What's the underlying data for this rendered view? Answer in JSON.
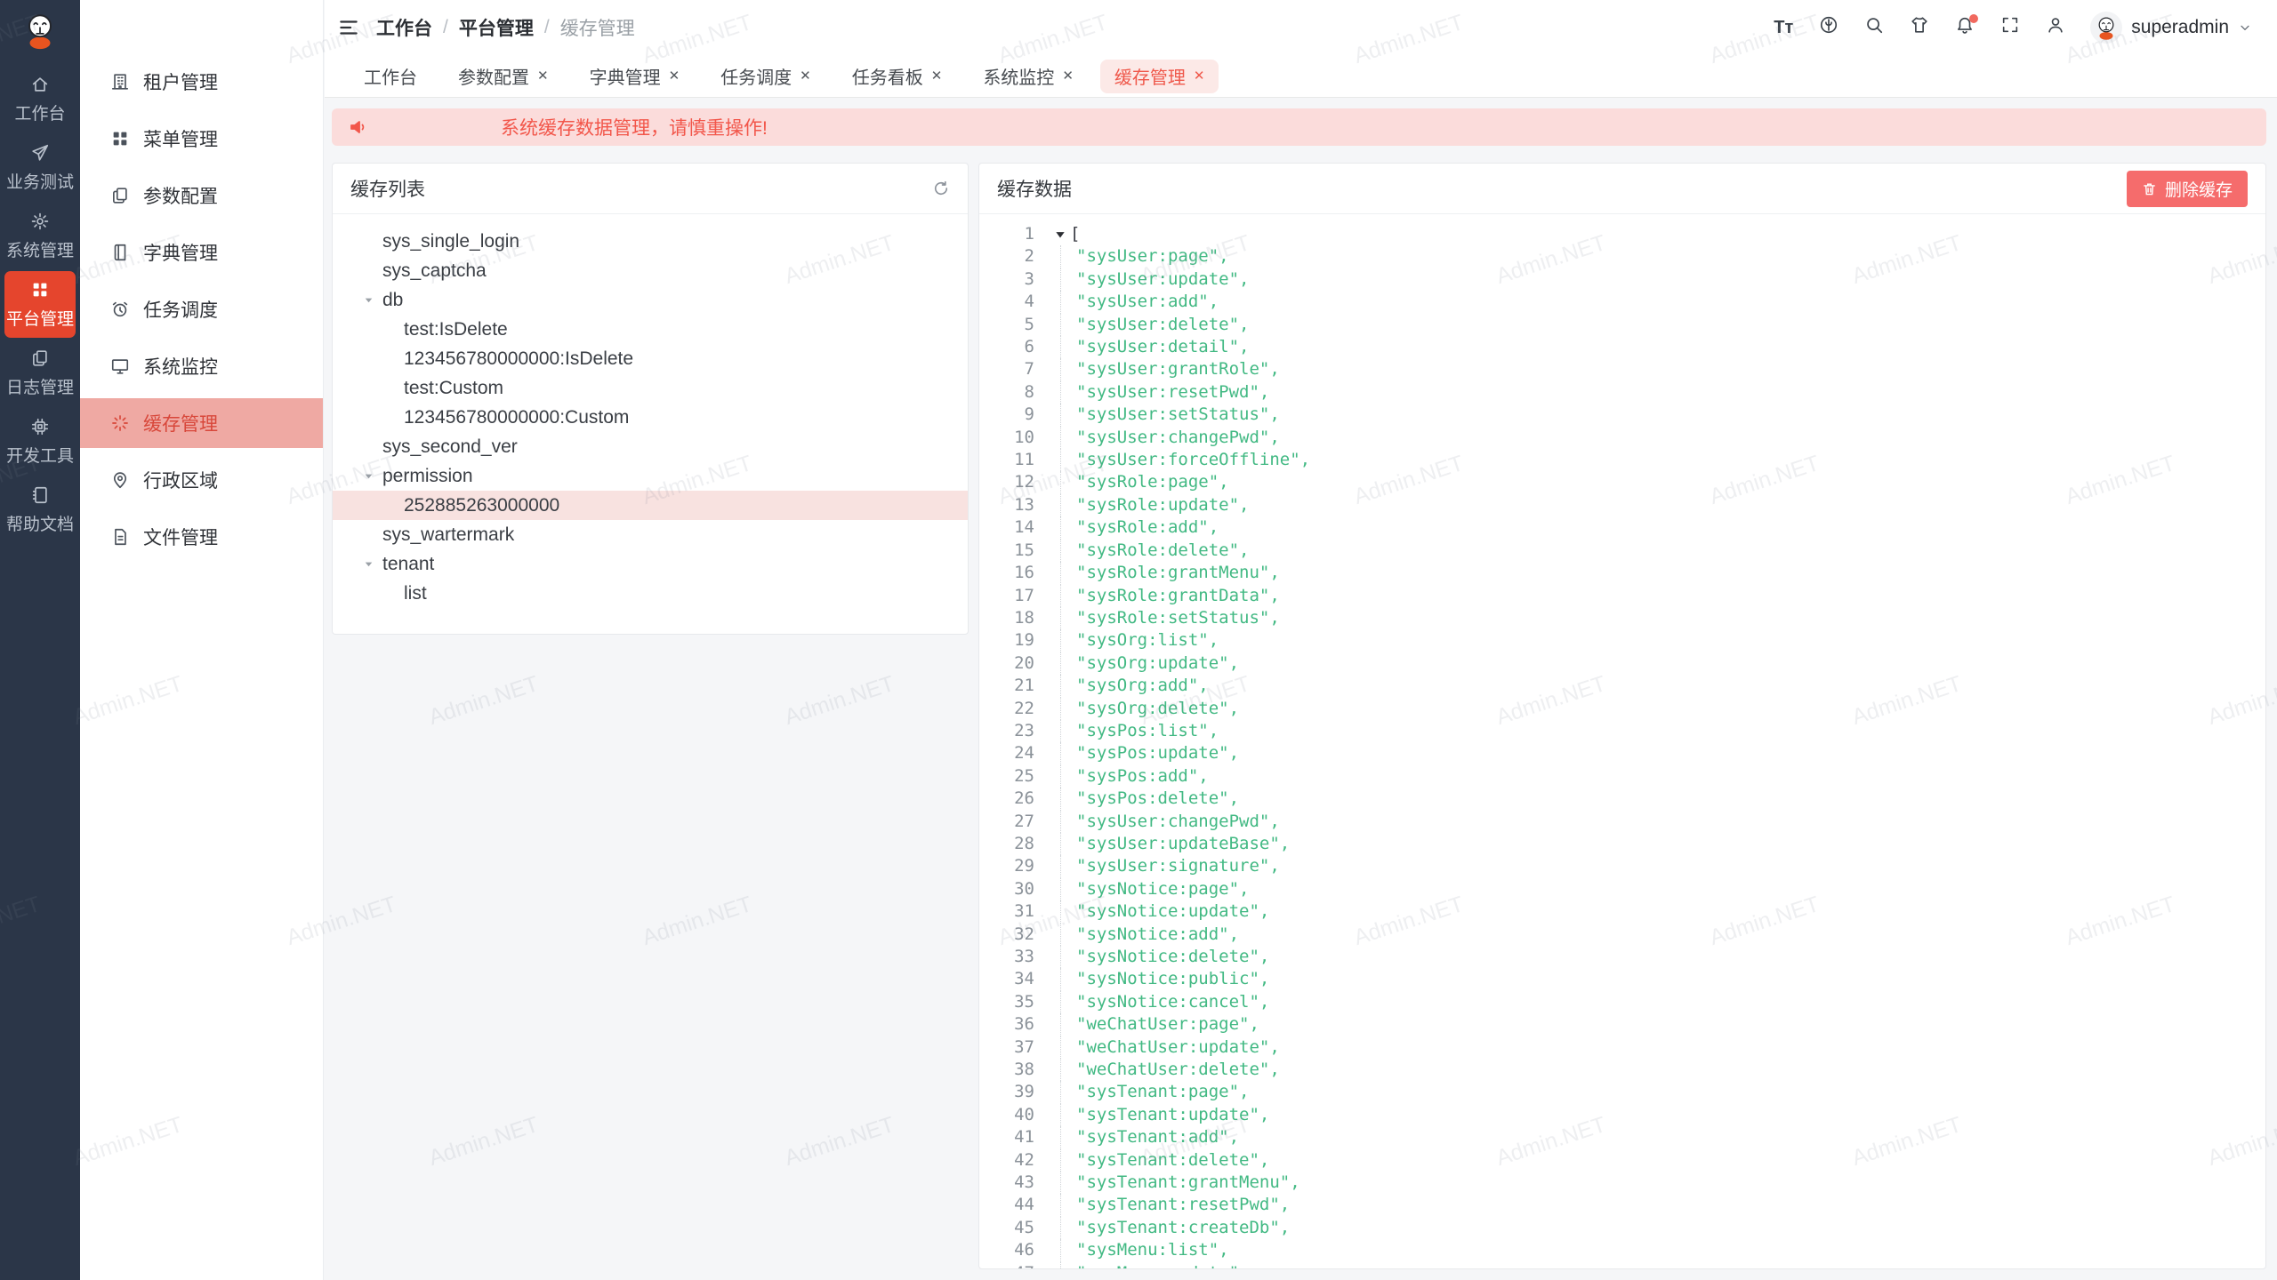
{
  "brand": {
    "name": "Admin.NET"
  },
  "header": {
    "breadcrumb": [
      "工作台",
      "平台管理",
      "缓存管理"
    ],
    "action_icons": [
      {
        "icon": "font-size"
      },
      {
        "icon": "language"
      },
      {
        "icon": "search"
      },
      {
        "icon": "theme-shirt"
      },
      {
        "icon": "notification-bell",
        "badge": true
      },
      {
        "icon": "fullscreen"
      },
      {
        "icon": "profile"
      }
    ],
    "user": {
      "name": "superadmin"
    }
  },
  "rail": {
    "items": [
      {
        "label": "工作台",
        "icon": "home",
        "active": false
      },
      {
        "label": "业务测试",
        "icon": "send",
        "active": false
      },
      {
        "label": "系统管理",
        "icon": "gear",
        "active": false
      },
      {
        "label": "平台管理",
        "icon": "grid",
        "active": true
      },
      {
        "label": "日志管理",
        "icon": "copy-doc",
        "active": false
      },
      {
        "label": "开发工具",
        "icon": "cpu",
        "active": false
      },
      {
        "label": "帮助文档",
        "icon": "notebook",
        "active": false
      }
    ]
  },
  "sidebar": {
    "items": [
      {
        "label": "租户管理",
        "icon": "building",
        "active": false
      },
      {
        "label": "菜单管理",
        "icon": "grid",
        "active": false
      },
      {
        "label": "参数配置",
        "icon": "copy-doc",
        "active": false
      },
      {
        "label": "字典管理",
        "icon": "book",
        "active": false
      },
      {
        "label": "任务调度",
        "icon": "alarm-clock",
        "active": false
      },
      {
        "label": "系统监控",
        "icon": "monitor",
        "active": false
      },
      {
        "label": "缓存管理",
        "icon": "loading-spinner",
        "active": true
      },
      {
        "label": "行政区域",
        "icon": "map-pin",
        "active": false
      },
      {
        "label": "文件管理",
        "icon": "document",
        "active": false
      }
    ]
  },
  "tabs": [
    {
      "label": "工作台",
      "closable": false,
      "active": false
    },
    {
      "label": "参数配置",
      "closable": true,
      "active": false
    },
    {
      "label": "字典管理",
      "closable": true,
      "active": false
    },
    {
      "label": "任务调度",
      "closable": true,
      "active": false
    },
    {
      "label": "任务看板",
      "closable": true,
      "active": false
    },
    {
      "label": "系统监控",
      "closable": true,
      "active": false
    },
    {
      "label": "缓存管理",
      "closable": true,
      "active": true
    }
  ],
  "alert": {
    "text": "系统缓存数据管理，请慎重操作!"
  },
  "cache_list": {
    "title": "缓存列表",
    "tree": [
      {
        "label": "sys_single_login",
        "level": 0,
        "caret": false,
        "selected": false
      },
      {
        "label": "sys_captcha",
        "level": 0,
        "caret": false,
        "selected": false
      },
      {
        "label": "db",
        "level": 0,
        "caret": true,
        "selected": false
      },
      {
        "label": "test:IsDelete",
        "level": 1,
        "caret": false,
        "selected": false
      },
      {
        "label": "123456780000000:IsDelete",
        "level": 1,
        "caret": false,
        "selected": false
      },
      {
        "label": "test:Custom",
        "level": 1,
        "caret": false,
        "selected": false
      },
      {
        "label": "123456780000000:Custom",
        "level": 1,
        "caret": false,
        "selected": false
      },
      {
        "label": "sys_second_ver",
        "level": 0,
        "caret": false,
        "selected": false
      },
      {
        "label": "permission",
        "level": 0,
        "caret": true,
        "selected": false
      },
      {
        "label": "252885263000000",
        "level": 1,
        "caret": false,
        "selected": true
      },
      {
        "label": "sys_wartermark",
        "level": 0,
        "caret": false,
        "selected": false
      },
      {
        "label": "tenant",
        "level": 0,
        "caret": true,
        "selected": false
      },
      {
        "label": "list",
        "level": 1,
        "caret": false,
        "selected": false
      }
    ]
  },
  "cache_data": {
    "title": "缓存数据",
    "delete_button": "删除缓存",
    "code": {
      "open_bracket": "[",
      "items": [
        "sysUser:page",
        "sysUser:update",
        "sysUser:add",
        "sysUser:delete",
        "sysUser:detail",
        "sysUser:grantRole",
        "sysUser:resetPwd",
        "sysUser:setStatus",
        "sysUser:changePwd",
        "sysUser:forceOffline",
        "sysRole:page",
        "sysRole:update",
        "sysRole:add",
        "sysRole:delete",
        "sysRole:grantMenu",
        "sysRole:grantData",
        "sysRole:setStatus",
        "sysOrg:list",
        "sysOrg:update",
        "sysOrg:add",
        "sysOrg:delete",
        "sysPos:list",
        "sysPos:update",
        "sysPos:add",
        "sysPos:delete",
        "sysUser:changePwd",
        "sysUser:updateBase",
        "sysUser:signature",
        "sysNotice:page",
        "sysNotice:update",
        "sysNotice:add",
        "sysNotice:delete",
        "sysNotice:public",
        "sysNotice:cancel",
        "weChatUser:page",
        "weChatUser:update",
        "weChatUser:delete",
        "sysTenant:page",
        "sysTenant:update",
        "sysTenant:add",
        "sysTenant:delete",
        "sysTenant:grantMenu",
        "sysTenant:resetPwd",
        "sysTenant:createDb",
        "sysMenu:list",
        "sysMenu:update"
      ]
    }
  },
  "watermark": {
    "text": "Admin.NET"
  },
  "colors": {
    "rail_bg": "#2b3648",
    "rail_active": "#e5452d",
    "brand_red": "#e8230e",
    "sidebar_active_bg": "#efa9a3",
    "sidebar_active_text": "#d8473a",
    "tab_active_text": "#ef584b",
    "tab_active_bg": "#fce9e7",
    "alert_bg": "#fbdcdb",
    "alert_text": "#f2564a",
    "danger_button": "#f56c6c",
    "code_string": "#42b983",
    "tree_selected_bg": "#f8e2e0"
  }
}
